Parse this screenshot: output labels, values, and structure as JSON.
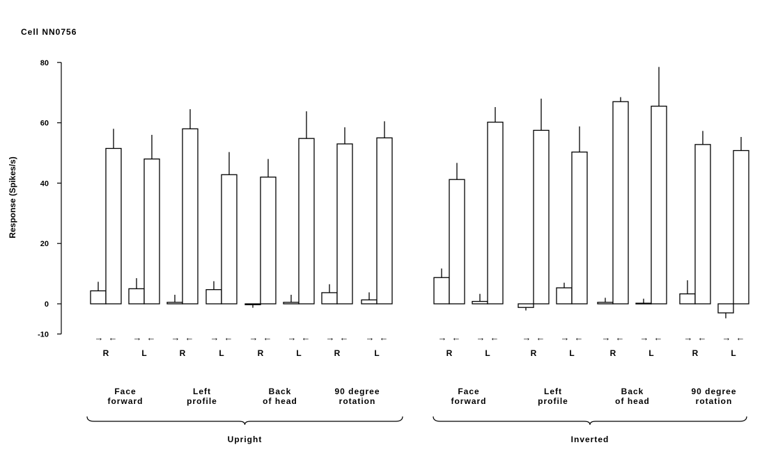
{
  "chart_data": {
    "type": "bar",
    "title": "Cell NN0756",
    "ylabel": "Response (Spikes/s)",
    "ylim": [
      -10,
      80
    ],
    "yticks": [
      -10,
      0,
      20,
      40,
      60,
      80
    ],
    "arrow_glyphs": [
      "→",
      "←"
    ],
    "grid": false,
    "legend": "none",
    "categories": [
      {
        "group": "Upright",
        "condition": "Face forward",
        "side": "R",
        "values": [
          4.3,
          51.5
        ],
        "errors": [
          3.0,
          6.5
        ]
      },
      {
        "group": "Upright",
        "condition": "Face forward",
        "side": "L",
        "values": [
          5.0,
          48.0
        ],
        "errors": [
          3.5,
          8.0
        ]
      },
      {
        "group": "Upright",
        "condition": "Left profile",
        "side": "R",
        "values": [
          0.5,
          58.0
        ],
        "errors": [
          2.5,
          6.5
        ]
      },
      {
        "group": "Upright",
        "condition": "Left profile",
        "side": "L",
        "values": [
          4.7,
          42.8
        ],
        "errors": [
          2.8,
          7.5
        ]
      },
      {
        "group": "Upright",
        "condition": "Back of head",
        "side": "R",
        "values": [
          -0.3,
          42.0
        ],
        "errors": [
          1.0,
          6.0
        ]
      },
      {
        "group": "Upright",
        "condition": "Back of head",
        "side": "L",
        "values": [
          0.5,
          54.8
        ],
        "errors": [
          2.5,
          9.0
        ]
      },
      {
        "group": "Upright",
        "condition": "90 degree rotation",
        "side": "R",
        "values": [
          3.7,
          53.0
        ],
        "errors": [
          2.8,
          5.5
        ]
      },
      {
        "group": "Upright",
        "condition": "90 degree rotation",
        "side": "L",
        "values": [
          1.3,
          55.0
        ],
        "errors": [
          2.5,
          5.5
        ]
      },
      {
        "group": "Inverted",
        "condition": "Face forward",
        "side": "R",
        "values": [
          8.7,
          41.2
        ],
        "errors": [
          3.0,
          5.5
        ]
      },
      {
        "group": "Inverted",
        "condition": "Face forward",
        "side": "L",
        "values": [
          0.8,
          60.2
        ],
        "errors": [
          2.5,
          5.0
        ]
      },
      {
        "group": "Inverted",
        "condition": "Left profile",
        "side": "R",
        "values": [
          -1.2,
          57.5
        ],
        "errors": [
          1.0,
          10.5
        ]
      },
      {
        "group": "Inverted",
        "condition": "Left profile",
        "side": "L",
        "values": [
          5.3,
          50.3
        ],
        "errors": [
          1.7,
          8.5
        ]
      },
      {
        "group": "Inverted",
        "condition": "Back of head",
        "side": "R",
        "values": [
          0.5,
          67.0
        ],
        "errors": [
          1.5,
          1.5
        ]
      },
      {
        "group": "Inverted",
        "condition": "Back of head",
        "side": "L",
        "values": [
          0.2,
          65.5
        ],
        "errors": [
          1.5,
          13.0
        ]
      },
      {
        "group": "Inverted",
        "condition": "90 degree rotation",
        "side": "R",
        "values": [
          3.3,
          52.8
        ],
        "errors": [
          4.5,
          4.5
        ]
      },
      {
        "group": "Inverted",
        "condition": "90 degree rotation",
        "side": "L",
        "values": [
          -3.0,
          50.8
        ],
        "errors": [
          1.8,
          4.5
        ]
      }
    ],
    "conditions": [
      {
        "group": "Upright",
        "label": [
          "Face",
          "forward"
        ]
      },
      {
        "group": "Upright",
        "label": [
          "Left",
          "profile"
        ]
      },
      {
        "group": "Upright",
        "label": [
          "Back",
          "of head"
        ]
      },
      {
        "group": "Upright",
        "label": [
          "90 degree",
          "rotation"
        ]
      },
      {
        "group": "Inverted",
        "label": [
          "Face",
          "forward"
        ]
      },
      {
        "group": "Inverted",
        "label": [
          "Left",
          "profile"
        ]
      },
      {
        "group": "Inverted",
        "label": [
          "Back",
          "of head"
        ]
      },
      {
        "group": "Inverted",
        "label": [
          "90 degree",
          "rotation"
        ]
      }
    ],
    "groups": [
      "Upright",
      "Inverted"
    ]
  }
}
